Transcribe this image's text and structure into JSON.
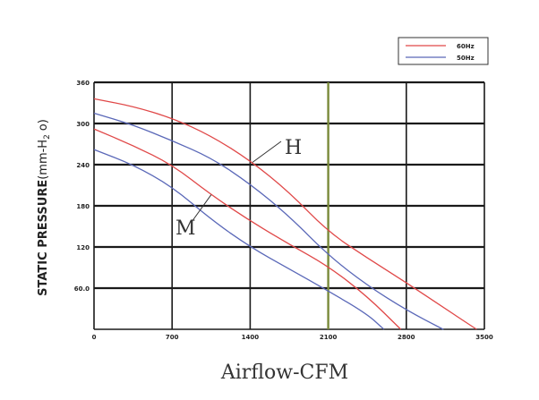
{
  "chart_data": {
    "type": "line",
    "title": "",
    "xlabel": "Airflow-CFM",
    "ylabel_main": "STATIC PRESSURE",
    "ylabel_unit": "(mm-H",
    "ylabel_sub": "2",
    "ylabel_end": "o)",
    "xlim": [
      0,
      3500
    ],
    "ylim": [
      0,
      360
    ],
    "x_ticks": [
      0,
      700,
      1400,
      2100,
      2800,
      3500
    ],
    "x_tick_labels": [
      "0",
      "700",
      "1400",
      "2100",
      "2800",
      "3500"
    ],
    "y_ticks": [
      60,
      120,
      180,
      240,
      300,
      360
    ],
    "y_tick_labels": [
      "60.0",
      "120",
      "180",
      "240",
      "300",
      "360"
    ],
    "grid": true,
    "legend_position": "top-right",
    "highlight_x": 2100,
    "colors": {
      "60Hz": "#e04848",
      "50Hz": "#5a68b8",
      "grid": "#1a1a1a",
      "highlight": "#7a8a3a"
    },
    "legend": [
      {
        "label": "60Hz",
        "color": "#e04848"
      },
      {
        "label": "50Hz",
        "color": "#5a68b8"
      }
    ],
    "annotations": [
      {
        "text": "H",
        "points_to_x": 1420,
        "points_to_y": 242
      },
      {
        "text": "M",
        "points_to_x": 1050,
        "points_to_y": 196
      }
    ],
    "series": [
      {
        "name": "60Hz",
        "group": "H",
        "x": [
          0,
          350,
          700,
          1050,
          1400,
          1750,
          2100,
          2450,
          2800,
          3150,
          3430
        ],
        "y": [
          336,
          325,
          308,
          282,
          246,
          200,
          142,
          104,
          68,
          30,
          0
        ]
      },
      {
        "name": "50Hz",
        "group": "H",
        "x": [
          0,
          350,
          700,
          1050,
          1400,
          1750,
          2100,
          2450,
          2800,
          3130
        ],
        "y": [
          315,
          298,
          275,
          250,
          212,
          165,
          108,
          64,
          28,
          0
        ]
      },
      {
        "name": "60Hz",
        "group": "M",
        "x": [
          0,
          350,
          700,
          1050,
          1400,
          1750,
          2100,
          2450,
          2750
        ],
        "y": [
          292,
          268,
          240,
          196,
          158,
          124,
          92,
          48,
          0
        ]
      },
      {
        "name": "50Hz",
        "group": "M",
        "x": [
          0,
          350,
          700,
          1050,
          1400,
          1750,
          2100,
          2450,
          2600
        ],
        "y": [
          262,
          240,
          208,
          160,
          120,
          88,
          56,
          22,
          0
        ]
      }
    ]
  }
}
